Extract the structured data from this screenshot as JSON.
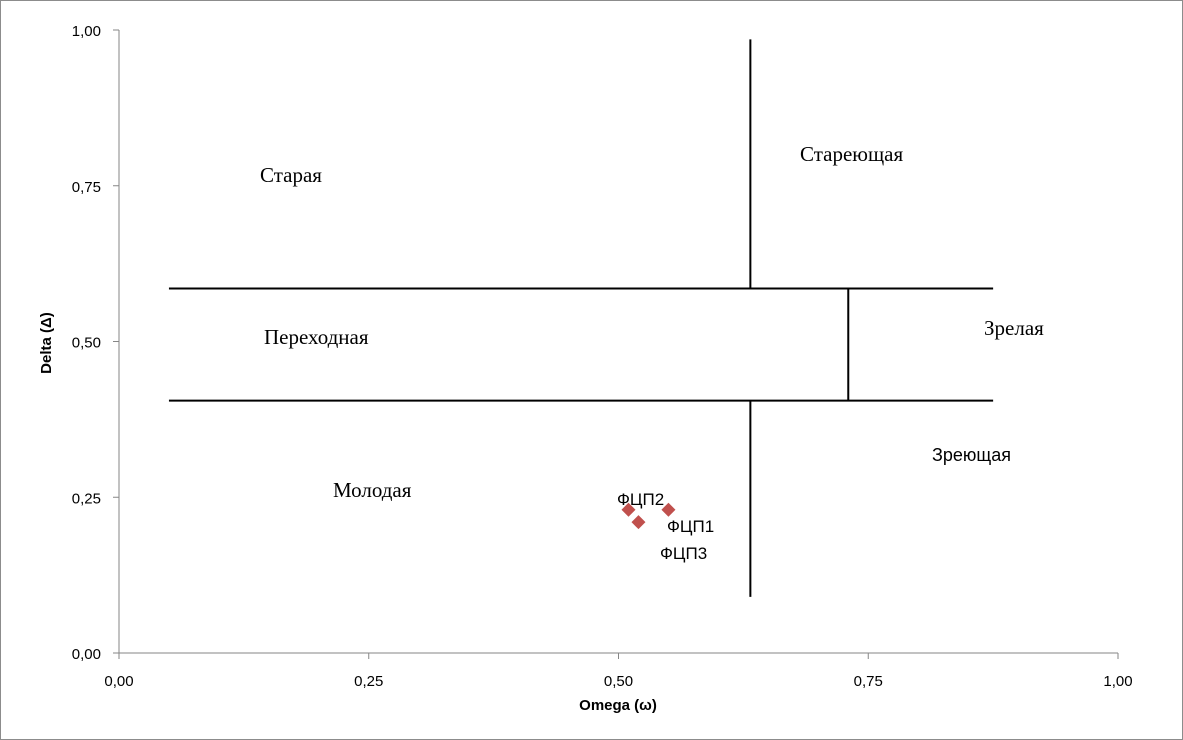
{
  "chart_data": {
    "type": "scatter",
    "xlabel": "Omega (ω)",
    "ylabel": "Delta (Δ)",
    "xlim": [
      0,
      1
    ],
    "ylim": [
      0,
      1
    ],
    "x_ticks": [
      "0,00",
      "0,25",
      "0,50",
      "0,75",
      "1,00"
    ],
    "y_ticks": [
      "0,00",
      "0,25",
      "0,50",
      "0,75",
      "1,00"
    ],
    "grid": false,
    "legend": "none",
    "marker_color": "#c0504d",
    "marker": "diamond",
    "points": [
      {
        "label": "ФЦП1",
        "x": 0.55,
        "y": 0.23
      },
      {
        "label": "ФЦП2",
        "x": 0.51,
        "y": 0.23
      },
      {
        "label": "ФЦП3",
        "x": 0.52,
        "y": 0.21
      }
    ],
    "region_labels": [
      "Старая",
      "Стареющая",
      "Переходная",
      "Зрелая",
      "Зреющая",
      "Молодая"
    ],
    "divider_lines": [
      {
        "x1": 0.05,
        "y1": 0.585,
        "x2": 0.875,
        "y2": 0.585
      },
      {
        "x1": 0.05,
        "y1": 0.405,
        "x2": 0.875,
        "y2": 0.405
      },
      {
        "x1": 0.632,
        "y1": 0.985,
        "x2": 0.632,
        "y2": 0.585
      },
      {
        "x1": 0.632,
        "y1": 0.405,
        "x2": 0.632,
        "y2": 0.09
      },
      {
        "x1": 0.73,
        "y1": 0.585,
        "x2": 0.73,
        "y2": 0.405
      }
    ]
  }
}
